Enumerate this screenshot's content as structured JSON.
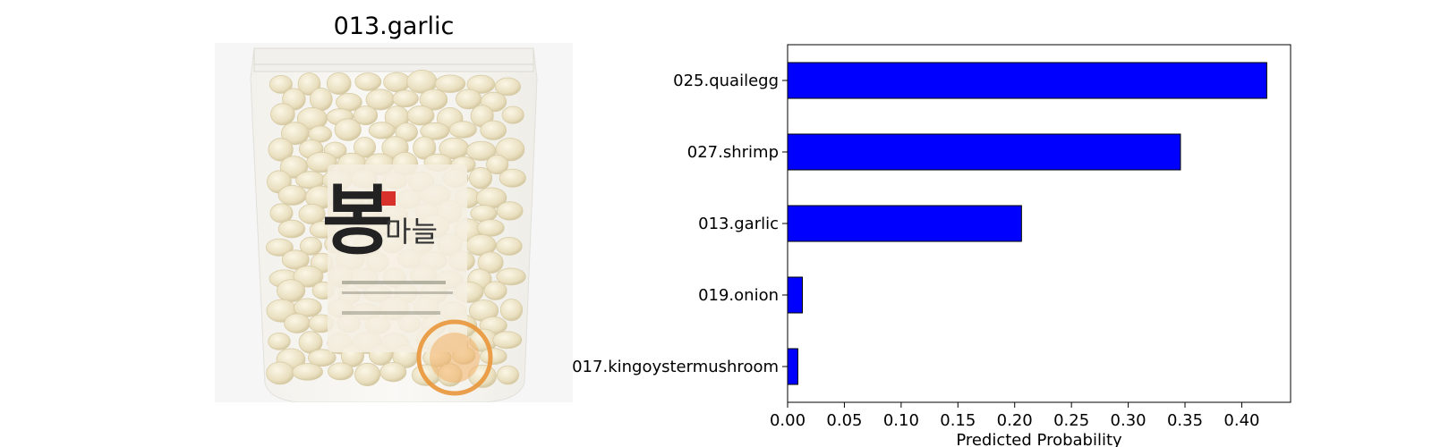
{
  "image": {
    "title": "013.garlic",
    "package_label": "마늘",
    "package_big_glyph": "봉"
  },
  "chart_data": {
    "type": "bar",
    "orientation": "horizontal",
    "categories": [
      "025.quailegg",
      "027.shrimp",
      "013.garlic",
      "019.onion",
      "017.kingoystermushroom"
    ],
    "values": [
      0.422,
      0.346,
      0.206,
      0.013,
      0.009
    ],
    "xlabel": "Predicted Probability",
    "ylabel": "",
    "xlim": [
      0,
      0.443
    ],
    "xticks": [
      "0.00",
      "0.05",
      "0.10",
      "0.15",
      "0.20",
      "0.25",
      "0.30",
      "0.35",
      "0.40"
    ],
    "bar_color": "#0000ff",
    "edge_color": "#000000",
    "grid": false
  }
}
